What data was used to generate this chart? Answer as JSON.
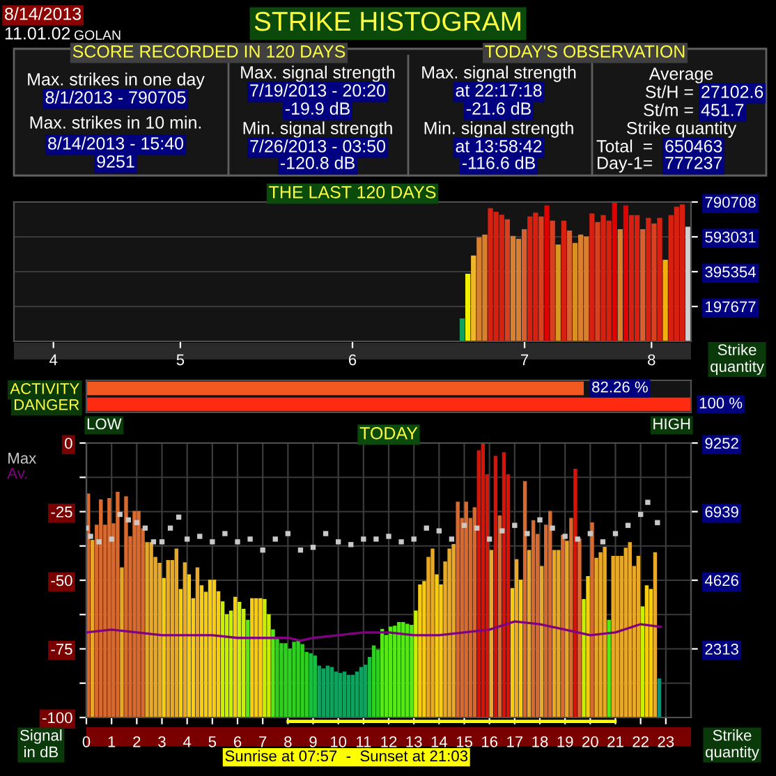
{
  "chart_data": [
    {
      "type": "other",
      "title": "STRIKE HISTOGRAM",
      "annotations": [
        "8/14/2013",
        "11.01.02",
        "GOLAN",
        "SCORE RECORDED IN 120 DAYS",
        "Max. strikes in one day",
        "8/1/2013 - 790705",
        "Max. strikes in 10 min.",
        "8/14/2013 - 15:40",
        "9251",
        "Max. signal strength",
        "7/19/2013 - 20:20",
        "-19.9 dB",
        "Min. signal strength",
        "7/26/2013 - 03:50",
        "-120.8 dB",
        "TODAY'S OBSERVATION",
        "Max. signal strength",
        "at 22:17:18",
        "-21.6 dB",
        "Min. signal strength",
        "at 13:58:42",
        "-116.6 dB",
        "Average",
        "St/H =",
        "27102.6",
        "St/m =",
        "451.7",
        "Strike quantity",
        "Total  =",
        "650463",
        "Day-1=",
        "777237"
      ]
    },
    {
      "type": "bar",
      "title": "THE LAST 120 DAYS",
      "ylabel": "Strike quantity",
      "x": [
        "2013-07-05",
        "2013-07-06",
        "2013-07-07",
        "2013-07-08",
        "2013-07-09",
        "2013-07-10",
        "2013-07-11",
        "2013-07-12",
        "2013-07-13",
        "2013-07-14",
        "2013-07-15",
        "2013-07-16",
        "2013-07-17",
        "2013-07-18",
        "2013-07-19",
        "2013-07-20",
        "2013-07-21",
        "2013-07-22",
        "2013-07-23",
        "2013-07-24",
        "2013-07-25",
        "2013-07-26",
        "2013-07-27",
        "2013-07-28",
        "2013-07-29",
        "2013-07-30",
        "2013-07-31",
        "2013-08-01",
        "2013-08-02",
        "2013-08-03",
        "2013-08-04",
        "2013-08-05",
        "2013-08-06",
        "2013-08-07",
        "2013-08-08",
        "2013-08-09",
        "2013-08-10",
        "2013-08-11",
        "2013-08-12",
        "2013-08-13",
        "2013-08-14"
      ],
      "values": [
        130000,
        383000,
        487000,
        590000,
        606000,
        756000,
        735000,
        719000,
        693000,
        598000,
        582000,
        637000,
        709000,
        730000,
        709000,
        772000,
        685000,
        550000,
        685000,
        629000,
        558000,
        606000,
        595000,
        725000,
        677000,
        717000,
        685000,
        790705,
        637000,
        772000,
        717000,
        717000,
        637000,
        701000,
        669000,
        701000,
        463000,
        717000,
        764000,
        777237,
        650463
      ],
      "colors": [
        "#10a060",
        "#f0f000",
        "#f0b828",
        "#d88030",
        "#d88030",
        "#d82010",
        "#d82010",
        "#d82010",
        "#d84020",
        "#d88030",
        "#d88030",
        "#d86030",
        "#d82010",
        "#d82010",
        "#d84020",
        "#e00000",
        "#d84020",
        "#d89820",
        "#d82010",
        "#d86030",
        "#d89020",
        "#d88030",
        "#d88030",
        "#d82010",
        "#d84020",
        "#d82010",
        "#d82010",
        "#e00000",
        "#d88030",
        "#e00000",
        "#d82010",
        "#d82010",
        "#d86030",
        "#d82010",
        "#d84020",
        "#d82010",
        "#f0b010",
        "#d82010",
        "#d82010",
        "#d82010",
        "#d0d0d0"
      ],
      "xlim": [
        "2013-04-17",
        "2013-08-15"
      ],
      "xticks": [
        {
          "value": "2013-04-24",
          "label": "4"
        },
        {
          "value": "2013-05-16T12:00",
          "label": "5"
        },
        {
          "value": "2013-06-16",
          "label": "6"
        },
        {
          "value": "2013-07-16T12:00",
          "label": "7"
        },
        {
          "value": "2013-08-08",
          "label": "8"
        }
      ],
      "ylim": [
        0,
        790708
      ],
      "yticks": [
        197677,
        395354,
        593031,
        790708
      ],
      "grid": "y"
    },
    {
      "type": "bar",
      "orientation": "horizontal",
      "categories": [
        "ACTIVITY",
        "DANGER"
      ],
      "values": [
        82.26,
        100
      ],
      "value_labels": [
        "82.26 %",
        "100 %"
      ],
      "colors": [
        "#f05a20",
        "#ff2a10"
      ],
      "xlim": [
        0,
        100
      ],
      "tick_labels": "y",
      "annotations": [
        "LOW",
        "HIGH"
      ]
    },
    {
      "type": "bar",
      "title": "TODAY",
      "ylabel": "Signal in dB",
      "y2label": "Strike quantity",
      "xlim": [
        0,
        24
      ],
      "xticks": [
        0,
        1,
        2,
        3,
        4,
        5,
        6,
        7,
        8,
        9,
        10,
        11,
        12,
        13,
        14,
        15,
        16,
        17,
        18,
        19,
        20,
        21,
        22,
        23
      ],
      "ylim": [
        -100,
        0
      ],
      "yticks": [
        0,
        {
          "value": -12.5,
          "label": null
        },
        -25,
        {
          "value": -37.5,
          "label": null
        },
        -50,
        {
          "value": -62.5,
          "label": null
        },
        -75,
        {
          "value": -87.5,
          "label": null
        },
        -100
      ],
      "y2lim": [
        0,
        9252
      ],
      "y2ticks": [
        2313,
        4626,
        6939,
        9252
      ],
      "grid": true,
      "legend": "left",
      "annotations": [
        "Sunrise at 07:57  -  Sunset at 21:03"
      ],
      "series": [
        {
          "type": "bar",
          "axis": "y2",
          "x": [
            0,
            0.1667,
            0.3333,
            0.5,
            0.6667,
            0.8333,
            1,
            1.1667,
            1.3333,
            1.5,
            1.6667,
            1.8333,
            2,
            2.1667,
            2.3333,
            2.5,
            2.6667,
            2.8333,
            3,
            3.1667,
            3.3333,
            3.5,
            3.6667,
            3.8333,
            4,
            4.1667,
            4.3333,
            4.5,
            4.6667,
            4.8333,
            5,
            5.1667,
            5.3333,
            5.5,
            5.6667,
            5.8333,
            6,
            6.1667,
            6.3333,
            6.5,
            6.6667,
            6.8333,
            7,
            7.1667,
            7.3333,
            7.5,
            7.6667,
            7.8333,
            8,
            8.1667,
            8.3333,
            8.5,
            8.6667,
            8.8333,
            9,
            9.1667,
            9.3333,
            9.5,
            9.6667,
            9.8333,
            10,
            10.1667,
            10.3333,
            10.5,
            10.6667,
            10.8333,
            11,
            11.1667,
            11.3333,
            11.5,
            11.6667,
            11.8333,
            12,
            12.1667,
            12.3333,
            12.5,
            12.6667,
            12.8333,
            13,
            13.1667,
            13.3333,
            13.5,
            13.6667,
            13.8333,
            14,
            14.1667,
            14.3333,
            14.5,
            14.6667,
            14.8333,
            15,
            15.1667,
            15.3333,
            15.5,
            15.6667,
            15.8333,
            16,
            16.1667,
            16.3333,
            16.5,
            16.6667,
            16.8333,
            17,
            17.1667,
            17.3333,
            17.5,
            17.6667,
            17.8333,
            18,
            18.1667,
            18.3333,
            18.5,
            18.6667,
            18.8333,
            19,
            19.1667,
            19.3333,
            19.5,
            19.6667,
            19.8333,
            20,
            20.1667,
            20.3333,
            20.5,
            20.6667,
            20.8333,
            21,
            21.1667,
            21.3333,
            21.5,
            21.6667,
            21.8333,
            22,
            22.1667,
            22.3333,
            22.5,
            22.6667
          ],
          "values": [
            7549,
            5987,
            6497,
            7348,
            6497,
            7394,
            6544,
            7611,
            5059,
            7457,
            6111,
            6962,
            6962,
            6374,
            5910,
            5910,
            5415,
            5213,
            4703,
            5306,
            5306,
            5693,
            4332,
            5229,
            4827,
            4022,
            5059,
            4455,
            4239,
            4641,
            4641,
            4254,
            3914,
            3481,
            3605,
            4069,
            3898,
            3666,
            3295,
            4022,
            4022,
            4022,
            3991,
            3481,
            2970,
            2661,
            2506,
            2506,
            2321,
            2553,
            2630,
            2475,
            2212,
            2166,
            2088,
            1748,
            1655,
            1748,
            1702,
            1547,
            1501,
            1547,
            1439,
            1439,
            1547,
            1702,
            1779,
            2042,
            2429,
            2290,
            2986,
            2785,
            3063,
            3094,
            3218,
            3218,
            3156,
            3125,
            3605,
            4486,
            4595,
            5415,
            5693,
            4827,
            4486,
            5260,
            5693,
            5848,
            7271,
            6729,
            7271,
            6729,
            7085,
            9004,
            9251,
            8199,
            5647,
            8818,
            6807,
            8942,
            8199,
            4363,
            5337,
            4641,
            7967,
            5647,
            6652,
            6188,
            5105,
            6497,
            6962,
            5647,
            5647,
            6157,
            5956,
            6729,
            8385,
            6033,
            3991,
            4765,
            6575,
            5384,
            5569,
            5755,
            3295,
            5446,
            5446,
            5446,
            5724,
            5910,
            5105,
            5446,
            3744,
            4455,
            4332,
            5569,
            1315
          ],
          "colors": [
            "#d86a30",
            "#e8a828",
            "#d86a30",
            "#d86a30",
            "#d86a30",
            "#d86a30",
            "#d86a30",
            "#d86a30",
            "#e8a828",
            "#d86a30",
            "#d86a30",
            "#d86a30",
            "#d86a30",
            "#d86a30",
            "#e8a828",
            "#e8a828",
            "#e8a828",
            "#e8a828",
            "#f8cc10",
            "#e8a828",
            "#e8a828",
            "#e8a828",
            "#f8cc10",
            "#e8a828",
            "#f8cc10",
            "#f8cc10",
            "#e8a828",
            "#f8cc10",
            "#f8cc10",
            "#f8cc10",
            "#f8cc10",
            "#f8cc10",
            "#c8f000",
            "#c8f000",
            "#c8f000",
            "#f8cc10",
            "#c8f000",
            "#c8f000",
            "#58e818",
            "#f8cc10",
            "#f8cc10",
            "#f8cc10",
            "#c8f000",
            "#c8f000",
            "#58e818",
            "#30d020",
            "#30d020",
            "#30d020",
            "#30d020",
            "#30d020",
            "#30d020",
            "#30d020",
            "#30d020",
            "#18c040",
            "#18c040",
            "#10a060",
            "#10a060",
            "#10a060",
            "#10a060",
            "#10a060",
            "#10a060",
            "#10a060",
            "#10a060",
            "#10a060",
            "#10a060",
            "#10a060",
            "#10a060",
            "#18c040",
            "#30d020",
            "#30d020",
            "#58e818",
            "#58e818",
            "#58e818",
            "#58e818",
            "#58e818",
            "#58e818",
            "#58e818",
            "#58e818",
            "#c8f000",
            "#f8cc10",
            "#f8cc10",
            "#e8a828",
            "#e8a828",
            "#f8cc10",
            "#f8cc10",
            "#e8a828",
            "#e8a828",
            "#e8a828",
            "#d86a30",
            "#d86a30",
            "#d86a30",
            "#d86a30",
            "#d86a30",
            "#d81408",
            "#d81408",
            "#d81408",
            "#e8a828",
            "#d81408",
            "#d86a30",
            "#d81408",
            "#d81408",
            "#f8cc10",
            "#e8a828",
            "#f8cc10",
            "#d86a30",
            "#e8a828",
            "#d86a30",
            "#d86a30",
            "#e8a828",
            "#d86a30",
            "#d86a30",
            "#e8a828",
            "#e8a828",
            "#d86a30",
            "#e8a828",
            "#d86a30",
            "#d81408",
            "#d86a30",
            "#c8f000",
            "#f8cc10",
            "#d86a30",
            "#e8a828",
            "#e8a828",
            "#e8a828",
            "#58e818",
            "#e8a828",
            "#e8a828",
            "#e8a828",
            "#e8a828",
            "#e8a828",
            "#e8a828",
            "#e8a828",
            "#c8f000",
            "#f8cc10",
            "#f8cc10",
            "#e8a828",
            "#10907a"
          ]
        },
        {
          "type": "scatter",
          "name": "Max",
          "color": "#c8c8c8",
          "x": [
            0,
            0.1667,
            0.5,
            1,
            1.3333,
            1.6667,
            2,
            2.3333,
            2.6667,
            3,
            3.3333,
            3.6667,
            4,
            4.5,
            5,
            5.5,
            6,
            6.5,
            7,
            7.5,
            8,
            8.5,
            9,
            9.5,
            10,
            10.5,
            11,
            11.5,
            12,
            12.5,
            13,
            13.5,
            14,
            14.5,
            15,
            15.5,
            16,
            16.5,
            17,
            17.5,
            18,
            18.5,
            19,
            19.5,
            20,
            20.5,
            21,
            21.5,
            22,
            22.2833,
            22.6667
          ],
          "values": [
            -31,
            -34,
            -36,
            -35,
            -26,
            -28,
            -29,
            -31,
            -36,
            -36,
            -31,
            -27,
            -35,
            -34,
            -36,
            -33,
            -36,
            -35,
            -39,
            -35,
            -33,
            -39,
            -38,
            -33,
            -36,
            -37,
            -35,
            -35,
            -34,
            -36,
            -35,
            -31,
            -32,
            -35,
            -30,
            -31,
            -35,
            -32,
            -30,
            -33,
            -28,
            -31,
            -34,
            -35,
            -33,
            -36,
            -33,
            -30,
            -26,
            -21.6,
            -29
          ]
        },
        {
          "type": "line",
          "name": "Av.",
          "color": "#800080",
          "x": [
            0,
            1,
            2,
            3,
            4,
            5,
            6,
            7,
            8,
            8.5,
            9,
            10,
            11,
            12,
            13,
            14,
            15,
            16,
            17,
            18,
            19,
            20,
            21,
            22,
            22.8
          ],
          "values": [
            -69,
            -68,
            -69,
            -70,
            -70,
            -70,
            -71,
            -71,
            -71,
            -72,
            -71,
            -70,
            -69,
            -69,
            -70,
            -70,
            -69,
            -68,
            -65,
            -66,
            -68,
            -70,
            -69,
            -66,
            -67
          ]
        }
      ]
    }
  ]
}
